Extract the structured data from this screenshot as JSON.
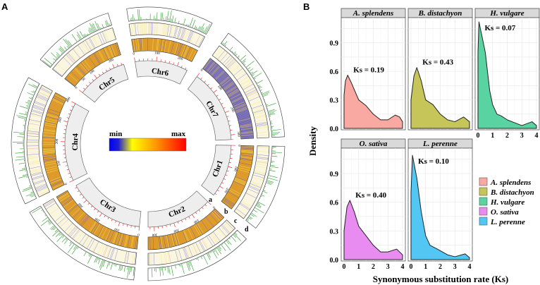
{
  "panel_a": {
    "letter": "A",
    "colorbar": {
      "min_label": "min",
      "max_label": "max",
      "colors": [
        "#0000ff",
        "#ffff00",
        "#ff8c00",
        "#ff0000"
      ]
    },
    "track_labels": [
      "a",
      "b",
      "c",
      "d"
    ],
    "chromosomes": [
      {
        "name": "Chr6",
        "length": 250,
        "ticks": [
          "0",
          "100",
          "200"
        ]
      },
      {
        "name": "Chr7",
        "length": 320,
        "ticks": [
          "0",
          "100",
          "200",
          "300"
        ]
      },
      {
        "name": "Chr1",
        "length": 250,
        "ticks": [
          "0",
          "100",
          "200"
        ]
      },
      {
        "name": "Chr2",
        "length": 330,
        "ticks": [
          "0",
          "100",
          "200",
          "300"
        ]
      },
      {
        "name": "Chr3",
        "length": 390,
        "ticks": [
          "0",
          "100",
          "200",
          "300"
        ]
      },
      {
        "name": "Chr4",
        "length": 400,
        "ticks": [
          "0",
          "100",
          "200",
          "300",
          "400"
        ]
      },
      {
        "name": "Chr5",
        "length": 250,
        "ticks": [
          "0",
          "50",
          "100",
          "200"
        ]
      }
    ]
  },
  "panel_b": {
    "letter": "B",
    "legend": [
      {
        "label": "A. splendens",
        "color": "#f9a9a1"
      },
      {
        "label": "B. distachyon",
        "color": "#c6c55a"
      },
      {
        "label": "H. vulgare",
        "color": "#5ad3a3"
      },
      {
        "label": "O. sativa",
        "color": "#e98cf1"
      },
      {
        "label": "L. perenne",
        "color": "#52c7f3"
      }
    ]
  },
  "chart_data": {
    "type": "area",
    "xlabel": "Synonymous substitution rate (Ks)",
    "ylabel": "Density",
    "xlim": [
      0,
      4
    ],
    "ylim": [
      0,
      1.15
    ],
    "x_ticks": [
      "0",
      "1",
      "2",
      "3",
      "4"
    ],
    "y_ticks": [
      "0.0",
      "0.3",
      "0.6",
      "0.9"
    ],
    "grid": true,
    "legend_position": "right",
    "series": [
      {
        "name": "A. splendens",
        "annotation": "Ks = 0.19",
        "color": "#f9a9a1",
        "x": [
          0,
          0.1,
          0.25,
          0.5,
          1,
          1.5,
          2,
          2.5,
          3,
          3.5,
          3.8,
          4
        ],
        "y": [
          0.35,
          0.5,
          0.56,
          0.48,
          0.3,
          0.24,
          0.15,
          0.09,
          0.09,
          0.14,
          0.12,
          0.07
        ]
      },
      {
        "name": "B. distachyon",
        "annotation": "Ks = 0.43",
        "color": "#c6c55a",
        "x": [
          0,
          0.2,
          0.4,
          0.7,
          1,
          1.5,
          2,
          2.5,
          3,
          3.6,
          4
        ],
        "y": [
          0.3,
          0.55,
          0.64,
          0.5,
          0.3,
          0.25,
          0.15,
          0.09,
          0.07,
          0.12,
          0.07
        ]
      },
      {
        "name": "H. vulgare",
        "annotation": "Ks = 0.07",
        "color": "#5ad3a3",
        "x": [
          0,
          0.07,
          0.3,
          0.5,
          0.8,
          1,
          1.3,
          1.6,
          2,
          2.5,
          3,
          3.7,
          4
        ],
        "y": [
          0.8,
          1.12,
          0.95,
          0.8,
          0.4,
          0.25,
          0.15,
          0.13,
          0.09,
          0.06,
          0.03,
          0.07,
          0.03
        ]
      },
      {
        "name": "O. sativa",
        "annotation": "Ks = 0.40",
        "color": "#e98cf1",
        "x": [
          0,
          0.2,
          0.4,
          0.7,
          1,
          1.5,
          2,
          2.5,
          3,
          3.6,
          4
        ],
        "y": [
          0.3,
          0.55,
          0.62,
          0.5,
          0.35,
          0.25,
          0.15,
          0.08,
          0.08,
          0.11,
          0.05
        ]
      },
      {
        "name": "L. perenne",
        "annotation": "Ks = 0.10",
        "color": "#52c7f3",
        "x": [
          0,
          0.1,
          0.4,
          0.7,
          1,
          1.3,
          1.8,
          2.5,
          3,
          3.7,
          4
        ],
        "y": [
          0.7,
          1.09,
          0.85,
          0.5,
          0.25,
          0.15,
          0.11,
          0.05,
          0.03,
          0.06,
          0.02
        ]
      }
    ]
  }
}
